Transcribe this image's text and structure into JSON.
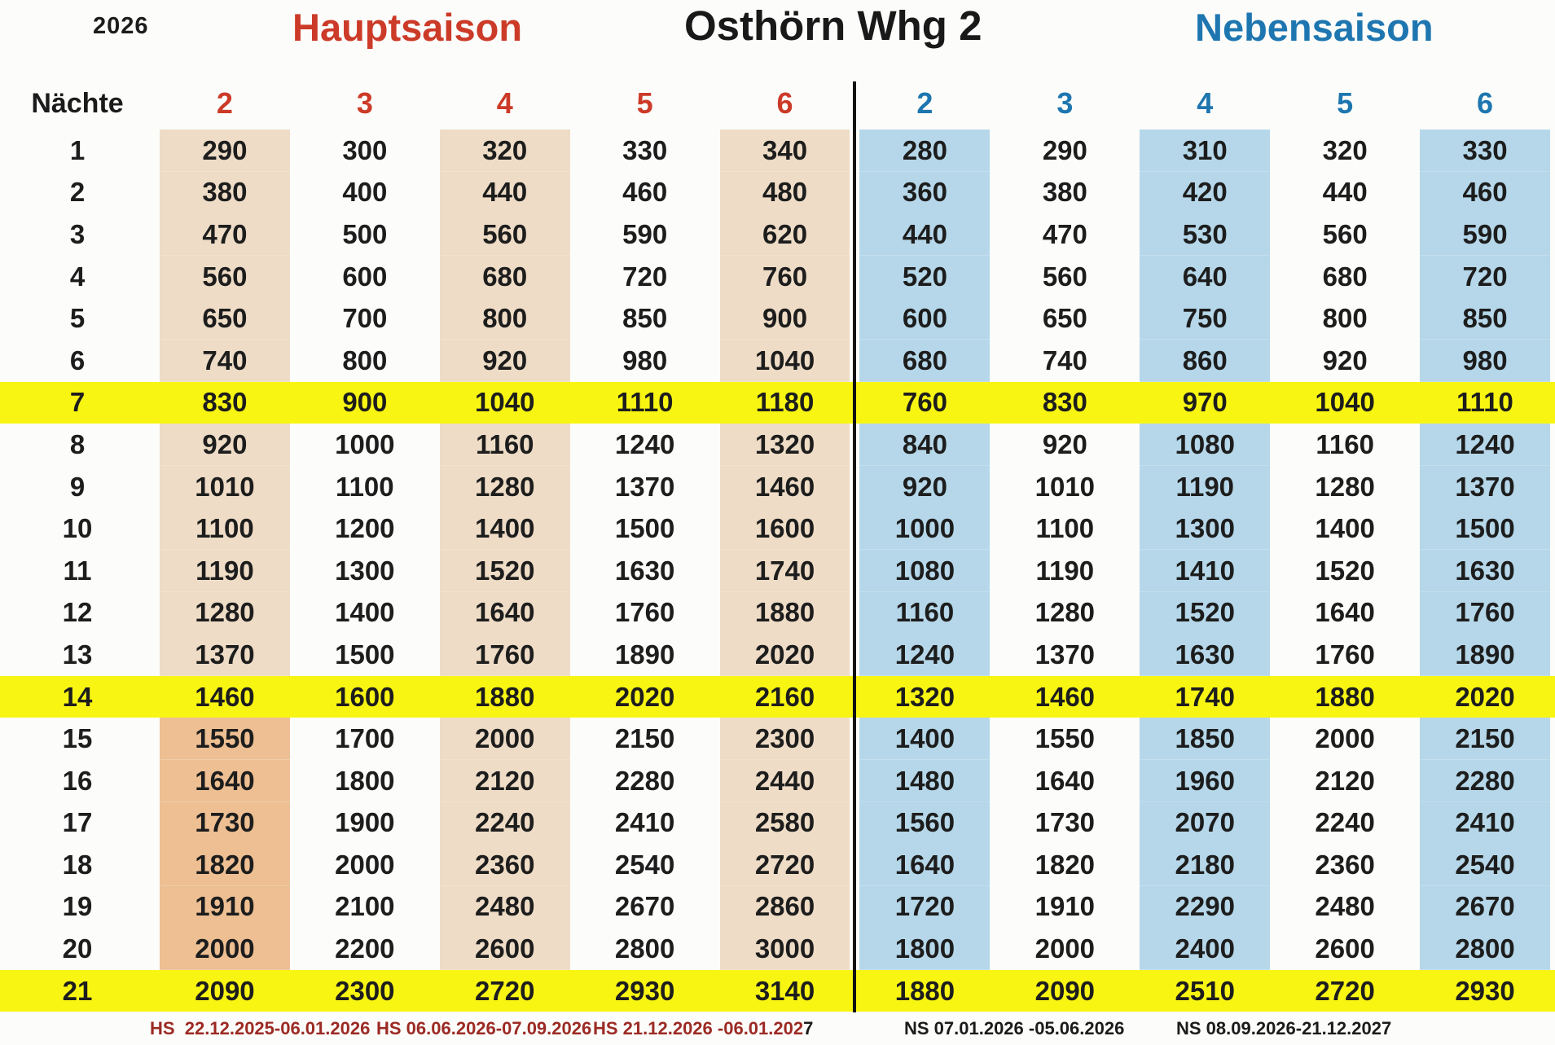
{
  "page": {
    "year": "2026",
    "title": "Osthörn Whg 2",
    "left_season": "Hauptsaison",
    "right_season": "Nebensaison"
  },
  "table": {
    "nights_label": "Nächte",
    "hs_headers": [
      "2",
      "3",
      "4",
      "5",
      "6"
    ],
    "ns_headers": [
      "2",
      "3",
      "4",
      "5",
      "6"
    ],
    "rows": [
      {
        "nights": "1",
        "hs": [
          "290",
          "300",
          "320",
          "330",
          "340"
        ],
        "ns": [
          "280",
          "290",
          "310",
          "320",
          "330"
        ],
        "highlight": false
      },
      {
        "nights": "2",
        "hs": [
          "380",
          "400",
          "440",
          "460",
          "480"
        ],
        "ns": [
          "360",
          "380",
          "420",
          "440",
          "460"
        ],
        "highlight": false
      },
      {
        "nights": "3",
        "hs": [
          "470",
          "500",
          "560",
          "590",
          "620"
        ],
        "ns": [
          "440",
          "470",
          "530",
          "560",
          "590"
        ],
        "highlight": false
      },
      {
        "nights": "4",
        "hs": [
          "560",
          "600",
          "680",
          "720",
          "760"
        ],
        "ns": [
          "520",
          "560",
          "640",
          "680",
          "720"
        ],
        "highlight": false
      },
      {
        "nights": "5",
        "hs": [
          "650",
          "700",
          "800",
          "850",
          "900"
        ],
        "ns": [
          "600",
          "650",
          "750",
          "800",
          "850"
        ],
        "highlight": false
      },
      {
        "nights": "6",
        "hs": [
          "740",
          "800",
          "920",
          "980",
          "1040"
        ],
        "ns": [
          "680",
          "740",
          "860",
          "920",
          "980"
        ],
        "highlight": false
      },
      {
        "nights": "7",
        "hs": [
          "830",
          "900",
          "1040",
          "1110",
          "1180"
        ],
        "ns": [
          "760",
          "830",
          "970",
          "1040",
          "1110"
        ],
        "highlight": true
      },
      {
        "nights": "8",
        "hs": [
          "920",
          "1000",
          "1160",
          "1240",
          "1320"
        ],
        "ns": [
          "840",
          "920",
          "1080",
          "1160",
          "1240"
        ],
        "highlight": false
      },
      {
        "nights": "9",
        "hs": [
          "1010",
          "1100",
          "1280",
          "1370",
          "1460"
        ],
        "ns": [
          "920",
          "1010",
          "1190",
          "1280",
          "1370"
        ],
        "highlight": false
      },
      {
        "nights": "10",
        "hs": [
          "1100",
          "1200",
          "1400",
          "1500",
          "1600"
        ],
        "ns": [
          "1000",
          "1100",
          "1300",
          "1400",
          "1500"
        ],
        "highlight": false
      },
      {
        "nights": "11",
        "hs": [
          "1190",
          "1300",
          "1520",
          "1630",
          "1740"
        ],
        "ns": [
          "1080",
          "1190",
          "1410",
          "1520",
          "1630"
        ],
        "highlight": false
      },
      {
        "nights": "12",
        "hs": [
          "1280",
          "1400",
          "1640",
          "1760",
          "1880"
        ],
        "ns": [
          "1160",
          "1280",
          "1520",
          "1640",
          "1760"
        ],
        "highlight": false
      },
      {
        "nights": "13",
        "hs": [
          "1370",
          "1500",
          "1760",
          "1890",
          "2020"
        ],
        "ns": [
          "1240",
          "1370",
          "1630",
          "1760",
          "1890"
        ],
        "highlight": false
      },
      {
        "nights": "14",
        "hs": [
          "1460",
          "1600",
          "1880",
          "2020",
          "2160"
        ],
        "ns": [
          "1320",
          "1460",
          "1740",
          "1880",
          "2020"
        ],
        "highlight": true
      },
      {
        "nights": "15",
        "hs": [
          "1550",
          "1700",
          "2000",
          "2150",
          "2300"
        ],
        "ns": [
          "1400",
          "1550",
          "1850",
          "2000",
          "2150"
        ],
        "highlight": false
      },
      {
        "nights": "16",
        "hs": [
          "1640",
          "1800",
          "2120",
          "2280",
          "2440"
        ],
        "ns": [
          "1480",
          "1640",
          "1960",
          "2120",
          "2280"
        ],
        "highlight": false
      },
      {
        "nights": "17",
        "hs": [
          "1730",
          "1900",
          "2240",
          "2410",
          "2580"
        ],
        "ns": [
          "1560",
          "1730",
          "2070",
          "2240",
          "2410"
        ],
        "highlight": false
      },
      {
        "nights": "18",
        "hs": [
          "1820",
          "2000",
          "2360",
          "2540",
          "2720"
        ],
        "ns": [
          "1640",
          "1820",
          "2180",
          "2360",
          "2540"
        ],
        "highlight": false
      },
      {
        "nights": "19",
        "hs": [
          "1910",
          "2100",
          "2480",
          "2670",
          "2860"
        ],
        "ns": [
          "1720",
          "1910",
          "2290",
          "2480",
          "2670"
        ],
        "highlight": false
      },
      {
        "nights": "20",
        "hs": [
          "2000",
          "2200",
          "2600",
          "2800",
          "3000"
        ],
        "ns": [
          "1800",
          "2000",
          "2400",
          "2600",
          "2800"
        ],
        "highlight": false
      },
      {
        "nights": "21",
        "hs": [
          "2090",
          "2300",
          "2720",
          "2930",
          "3140"
        ],
        "ns": [
          "1880",
          "2090",
          "2510",
          "2720",
          "2930"
        ],
        "highlight": true
      }
    ]
  },
  "footnotes": {
    "hs1": "HS  22.12.2025-06.01.2026",
    "hs2": "HS 06.06.2026-07.09.2026",
    "hs3_red": "HS 21.12.2026 -06.01.202",
    "hs3_black": "7",
    "ns1": "NS 07.01.2026 -05.06.2026",
    "ns2": "NS 08.09.2026-21.12.2027"
  },
  "colors": {
    "red": "#cc3a28",
    "blue": "#1e76b0",
    "dark_red": "#9c2a24",
    "beige": "#eedcc6",
    "tan": "#edbf93",
    "light_blue": "#b5d7e9",
    "yellow": "#f8f513",
    "text": "#1c1c1c"
  }
}
